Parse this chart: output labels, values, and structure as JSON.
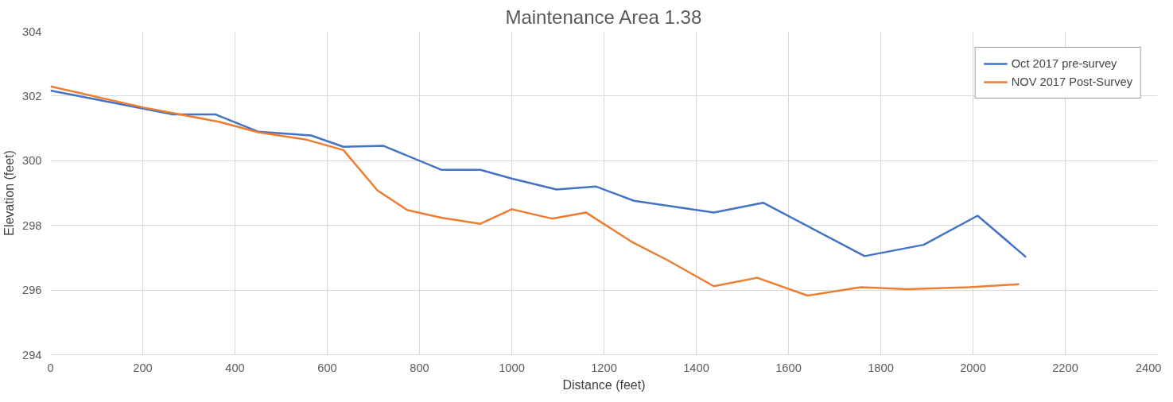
{
  "chart_data": {
    "type": "line",
    "title": "Maintenance Area 1.38",
    "xlabel": "Distance (feet)",
    "ylabel": "Elevation (feet)",
    "xlim": [
      0,
      2400
    ],
    "xticks": [
      0,
      200,
      400,
      600,
      800,
      1000,
      1200,
      1400,
      1600,
      1800,
      2000,
      2200,
      2400
    ],
    "ylim": [
      294,
      304
    ],
    "yticks": [
      294,
      296,
      298,
      300,
      302,
      304
    ],
    "grid": true,
    "legend": "top right",
    "marker": "none",
    "line_style": "solid",
    "series": [
      {
        "name": "Oct 2017 pre-survey",
        "color": "#4472c4",
        "x": [
          0,
          266,
          358,
          450,
          565,
          635,
          722,
          847,
          932,
          1000,
          1097,
          1183,
          1265,
          1438,
          1545,
          1765,
          1893,
          2010,
          2115
        ],
        "values": [
          302.17,
          301.43,
          301.43,
          300.9,
          300.78,
          300.43,
          300.46,
          299.72,
          299.72,
          299.45,
          299.11,
          299.2,
          298.76,
          298.4,
          298.7,
          297.05,
          297.4,
          298.3,
          297.02
        ]
      },
      {
        "name": "NOV 2017 Post-Survey",
        "color": "#ed7d31",
        "x": [
          0,
          200,
          367,
          450,
          555,
          635,
          709,
          774,
          847,
          932,
          1000,
          1087,
          1161,
          1259,
          1337,
          1438,
          1532,
          1641,
          1757,
          1857,
          1992,
          2100
        ],
        "values": [
          302.3,
          301.65,
          301.2,
          300.88,
          300.65,
          300.33,
          299.08,
          298.47,
          298.24,
          298.05,
          298.5,
          298.21,
          298.4,
          297.5,
          296.93,
          296.12,
          296.38,
          295.83,
          296.09,
          296.03,
          296.09,
          296.18
        ]
      }
    ]
  }
}
